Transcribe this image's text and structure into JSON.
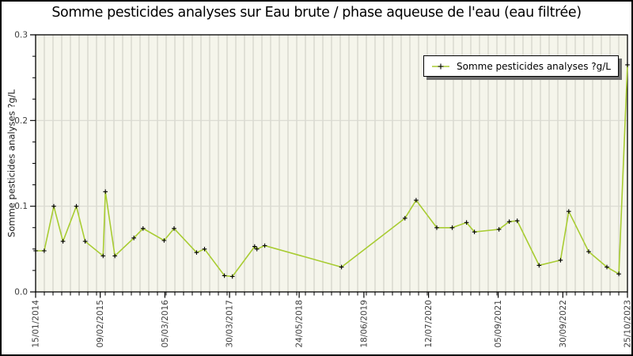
{
  "colors": {
    "background": "#ffffff",
    "plot_background": "#f5f5eb",
    "gridline_vertical": "#ccccc2",
    "gridline_horizontal": "#d9d9d1",
    "axis": "#000000",
    "line": "#a8cc32",
    "marker": "#000000",
    "tick_label": "#3d3d3d"
  },
  "chart_data": {
    "type": "line",
    "title": "Somme pesticides analyses sur Eau brute / phase aqueuse de l'eau (eau filtrée)",
    "xlabel": "",
    "ylabel": "Somme pesticides analyses ?g/L",
    "ylim": [
      0,
      0.3
    ],
    "y_ticks": [
      0.0,
      0.1,
      0.2,
      0.3
    ],
    "y_minor_step": 0.025,
    "x_tick_labels": [
      "15/01/2014",
      "09/02/2015",
      "05/03/2016",
      "30/03/2017",
      "24/05/2018",
      "18/06/2019",
      "12/07/2020",
      "05/09/2021",
      "30/09/2022",
      "25/10/2023"
    ],
    "x_minor_divisions": 68,
    "grid": "vertical minor gridlines + horizontal major gridlines",
    "legend": {
      "label": "Somme pesticides analyses ?g/L",
      "position": "upper right",
      "marker": "plus-on-line"
    },
    "series": [
      {
        "name": "Somme pesticides analyses ?g/L",
        "points": [
          {
            "d": "15/01/2014",
            "v": 0.048
          },
          {
            "d": "08/03/2014",
            "v": 0.048
          },
          {
            "d": "05/05/2014",
            "v": 0.1
          },
          {
            "d": "29/06/2014",
            "v": 0.059
          },
          {
            "d": "18/09/2014",
            "v": 0.1
          },
          {
            "d": "10/11/2014",
            "v": 0.059
          },
          {
            "d": "26/02/2015",
            "v": 0.042
          },
          {
            "d": "12/03/2015",
            "v": 0.117
          },
          {
            "d": "08/05/2015",
            "v": 0.042
          },
          {
            "d": "31/08/2015",
            "v": 0.063
          },
          {
            "d": "25/10/2015",
            "v": 0.074
          },
          {
            "d": "29/02/2016",
            "v": 0.06
          },
          {
            "d": "29/04/2016",
            "v": 0.074
          },
          {
            "d": "12/09/2016",
            "v": 0.046
          },
          {
            "d": "30/10/2016",
            "v": 0.05
          },
          {
            "d": "27/02/2017",
            "v": 0.019
          },
          {
            "d": "16/04/2017",
            "v": 0.018
          },
          {
            "d": "28/08/2017",
            "v": 0.053
          },
          {
            "d": "11/09/2017",
            "v": 0.05
          },
          {
            "d": "28/10/2017",
            "v": 0.054
          },
          {
            "d": "03/02/2019",
            "v": 0.029
          },
          {
            "d": "21/02/2020",
            "v": 0.086
          },
          {
            "d": "28/04/2020",
            "v": 0.107
          },
          {
            "d": "31/08/2020",
            "v": 0.075
          },
          {
            "d": "02/12/2020",
            "v": 0.075
          },
          {
            "d": "26/02/2021",
            "v": 0.081
          },
          {
            "d": "15/04/2021",
            "v": 0.07
          },
          {
            "d": "10/09/2021",
            "v": 0.073
          },
          {
            "d": "11/11/2021",
            "v": 0.082
          },
          {
            "d": "29/12/2021",
            "v": 0.083
          },
          {
            "d": "10/05/2022",
            "v": 0.031
          },
          {
            "d": "16/09/2022",
            "v": 0.037
          },
          {
            "d": "05/11/2022",
            "v": 0.094
          },
          {
            "d": "05/03/2023",
            "v": 0.047
          },
          {
            "d": "23/06/2023",
            "v": 0.029
          },
          {
            "d": "03/09/2023",
            "v": 0.021
          },
          {
            "d": "25/10/2023",
            "v": 0.265
          }
        ]
      }
    ]
  }
}
